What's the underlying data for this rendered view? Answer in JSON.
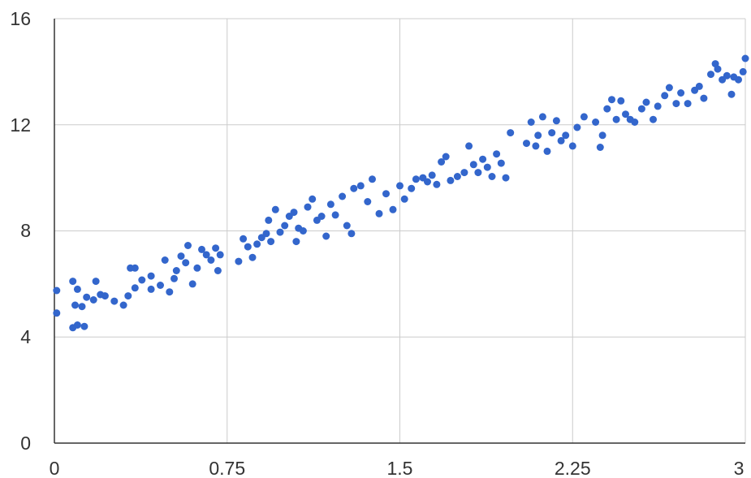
{
  "chart_data": {
    "type": "scatter",
    "title": "",
    "xlabel": "",
    "ylabel": "",
    "xlim": [
      0,
      3
    ],
    "ylim": [
      0,
      16
    ],
    "x_ticks": [
      "0",
      "0.75",
      "1.5",
      "2.25",
      "3"
    ],
    "y_ticks": [
      "0",
      "4",
      "8",
      "12",
      "16"
    ],
    "grid": true,
    "legend": "none",
    "color": "#3366cc",
    "series": [
      {
        "points": [
          [
            0.01,
            5.75
          ],
          [
            0.01,
            4.9
          ],
          [
            0.08,
            4.35
          ],
          [
            0.1,
            4.45
          ],
          [
            0.13,
            4.4
          ],
          [
            0.08,
            6.1
          ],
          [
            0.1,
            5.8
          ],
          [
            0.09,
            5.2
          ],
          [
            0.12,
            5.15
          ],
          [
            0.14,
            5.5
          ],
          [
            0.17,
            5.4
          ],
          [
            0.18,
            6.1
          ],
          [
            0.2,
            5.6
          ],
          [
            0.22,
            5.55
          ],
          [
            0.26,
            5.35
          ],
          [
            0.3,
            5.2
          ],
          [
            0.32,
            5.55
          ],
          [
            0.33,
            6.6
          ],
          [
            0.35,
            6.6
          ],
          [
            0.35,
            5.85
          ],
          [
            0.38,
            6.15
          ],
          [
            0.42,
            6.3
          ],
          [
            0.42,
            5.8
          ],
          [
            0.46,
            5.95
          ],
          [
            0.48,
            6.9
          ],
          [
            0.5,
            5.7
          ],
          [
            0.52,
            6.2
          ],
          [
            0.53,
            6.5
          ],
          [
            0.55,
            7.05
          ],
          [
            0.57,
            6.8
          ],
          [
            0.58,
            7.45
          ],
          [
            0.6,
            6.0
          ],
          [
            0.62,
            6.6
          ],
          [
            0.64,
            7.3
          ],
          [
            0.66,
            7.1
          ],
          [
            0.68,
            6.9
          ],
          [
            0.7,
            7.35
          ],
          [
            0.72,
            7.1
          ],
          [
            0.71,
            6.5
          ],
          [
            0.8,
            6.85
          ],
          [
            0.82,
            7.7
          ],
          [
            0.84,
            7.4
          ],
          [
            0.86,
            7.0
          ],
          [
            0.88,
            7.5
          ],
          [
            0.9,
            7.75
          ],
          [
            0.92,
            7.9
          ],
          [
            0.93,
            8.4
          ],
          [
            0.94,
            7.6
          ],
          [
            0.96,
            8.8
          ],
          [
            0.98,
            7.95
          ],
          [
            1.0,
            8.2
          ],
          [
            1.02,
            8.55
          ],
          [
            1.04,
            8.7
          ],
          [
            1.05,
            7.6
          ],
          [
            1.06,
            8.1
          ],
          [
            1.08,
            8.0
          ],
          [
            1.1,
            8.9
          ],
          [
            1.12,
            9.2
          ],
          [
            1.14,
            8.4
          ],
          [
            1.16,
            8.55
          ],
          [
            1.18,
            7.8
          ],
          [
            1.2,
            9.0
          ],
          [
            1.22,
            8.6
          ],
          [
            1.25,
            9.3
          ],
          [
            1.27,
            8.2
          ],
          [
            1.29,
            7.9
          ],
          [
            1.3,
            9.6
          ],
          [
            1.33,
            9.7
          ],
          [
            1.36,
            9.1
          ],
          [
            1.38,
            9.95
          ],
          [
            1.41,
            8.65
          ],
          [
            1.44,
            9.4
          ],
          [
            1.47,
            8.8
          ],
          [
            1.5,
            9.7
          ],
          [
            1.52,
            9.2
          ],
          [
            1.55,
            9.6
          ],
          [
            1.57,
            9.95
          ],
          [
            1.6,
            10.0
          ],
          [
            1.62,
            9.85
          ],
          [
            1.64,
            10.1
          ],
          [
            1.66,
            9.75
          ],
          [
            1.68,
            10.6
          ],
          [
            1.7,
            10.8
          ],
          [
            1.72,
            9.9
          ],
          [
            1.75,
            10.05
          ],
          [
            1.78,
            10.2
          ],
          [
            1.8,
            11.2
          ],
          [
            1.82,
            10.5
          ],
          [
            1.84,
            10.2
          ],
          [
            1.86,
            10.7
          ],
          [
            1.88,
            10.4
          ],
          [
            1.9,
            10.05
          ],
          [
            1.92,
            10.9
          ],
          [
            1.94,
            10.55
          ],
          [
            1.96,
            10.0
          ],
          [
            1.98,
            11.7
          ],
          [
            2.05,
            11.3
          ],
          [
            2.07,
            12.1
          ],
          [
            2.09,
            11.2
          ],
          [
            2.1,
            11.6
          ],
          [
            2.12,
            12.3
          ],
          [
            2.14,
            11.0
          ],
          [
            2.16,
            11.7
          ],
          [
            2.18,
            12.15
          ],
          [
            2.2,
            11.4
          ],
          [
            2.22,
            11.6
          ],
          [
            2.25,
            11.2
          ],
          [
            2.27,
            11.9
          ],
          [
            2.3,
            12.3
          ],
          [
            2.35,
            12.1
          ],
          [
            2.37,
            11.15
          ],
          [
            2.38,
            11.6
          ],
          [
            2.4,
            12.6
          ],
          [
            2.42,
            12.95
          ],
          [
            2.44,
            12.2
          ],
          [
            2.46,
            12.9
          ],
          [
            2.48,
            12.4
          ],
          [
            2.5,
            12.2
          ],
          [
            2.52,
            12.1
          ],
          [
            2.55,
            12.6
          ],
          [
            2.57,
            12.85
          ],
          [
            2.6,
            12.2
          ],
          [
            2.62,
            12.7
          ],
          [
            2.65,
            13.1
          ],
          [
            2.67,
            13.4
          ],
          [
            2.7,
            12.8
          ],
          [
            2.72,
            13.2
          ],
          [
            2.75,
            12.8
          ],
          [
            2.78,
            13.3
          ],
          [
            2.8,
            13.45
          ],
          [
            2.82,
            13.0
          ],
          [
            2.85,
            13.9
          ],
          [
            2.87,
            14.3
          ],
          [
            2.88,
            14.1
          ],
          [
            2.9,
            13.7
          ],
          [
            2.92,
            13.85
          ],
          [
            2.94,
            13.15
          ],
          [
            2.95,
            13.8
          ],
          [
            2.97,
            13.7
          ],
          [
            2.99,
            14.0
          ],
          [
            3.0,
            14.5
          ]
        ]
      }
    ]
  }
}
